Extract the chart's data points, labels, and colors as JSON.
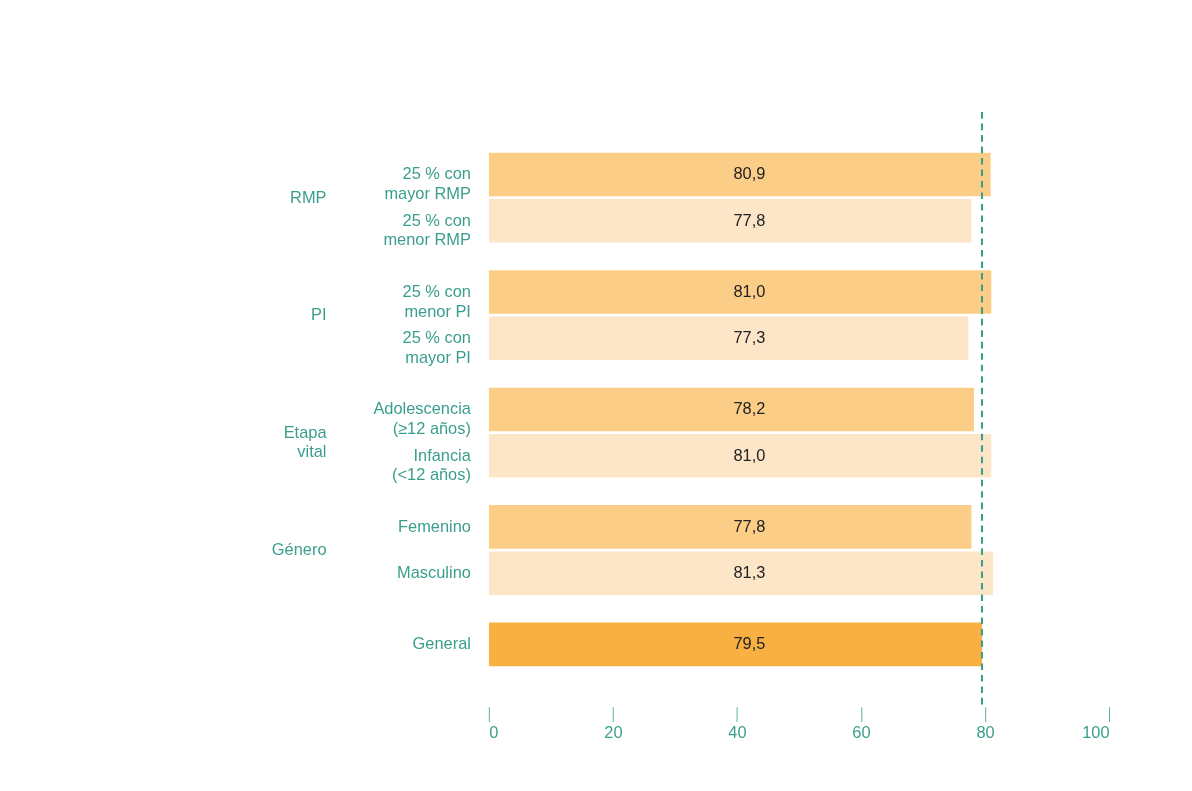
{
  "chart_data": {
    "type": "bar",
    "orientation": "horizontal",
    "categories": [
      "25 % con mayor RMP",
      "25 % con menor RMP",
      "25 % con menor PI",
      "25 % con mayor PI",
      "Adolescencia (≥12 años)",
      "Infancia (<12 años)",
      "Femenino",
      "Masculino",
      "General"
    ],
    "values": [
      80.9,
      77.8,
      81.0,
      77.3,
      78.2,
      81.0,
      77.8,
      81.3,
      79.5
    ],
    "value_labels": [
      "80,9",
      "77,8",
      "81,0",
      "77,3",
      "78,2",
      "81,0",
      "77,8",
      "81,3",
      "79,5"
    ],
    "colors": [
      "#fbcd87",
      "#fde6c8",
      "#fbcd87",
      "#fde6c8",
      "#fbcd87",
      "#fde6c8",
      "#fbcd87",
      "#fde6c8",
      "#f9b043"
    ],
    "annotations": [
      "RMP",
      "PI",
      "Etapa vital",
      "Género"
    ],
    "ref_lines": [
      {
        "axis": "x",
        "value": 79.5,
        "color": "#3a9e8c",
        "line_style": "dashed"
      }
    ],
    "xlim": [
      0,
      100
    ],
    "xticks": [
      0,
      20,
      40,
      60,
      80,
      100
    ],
    "grid": false
  }
}
